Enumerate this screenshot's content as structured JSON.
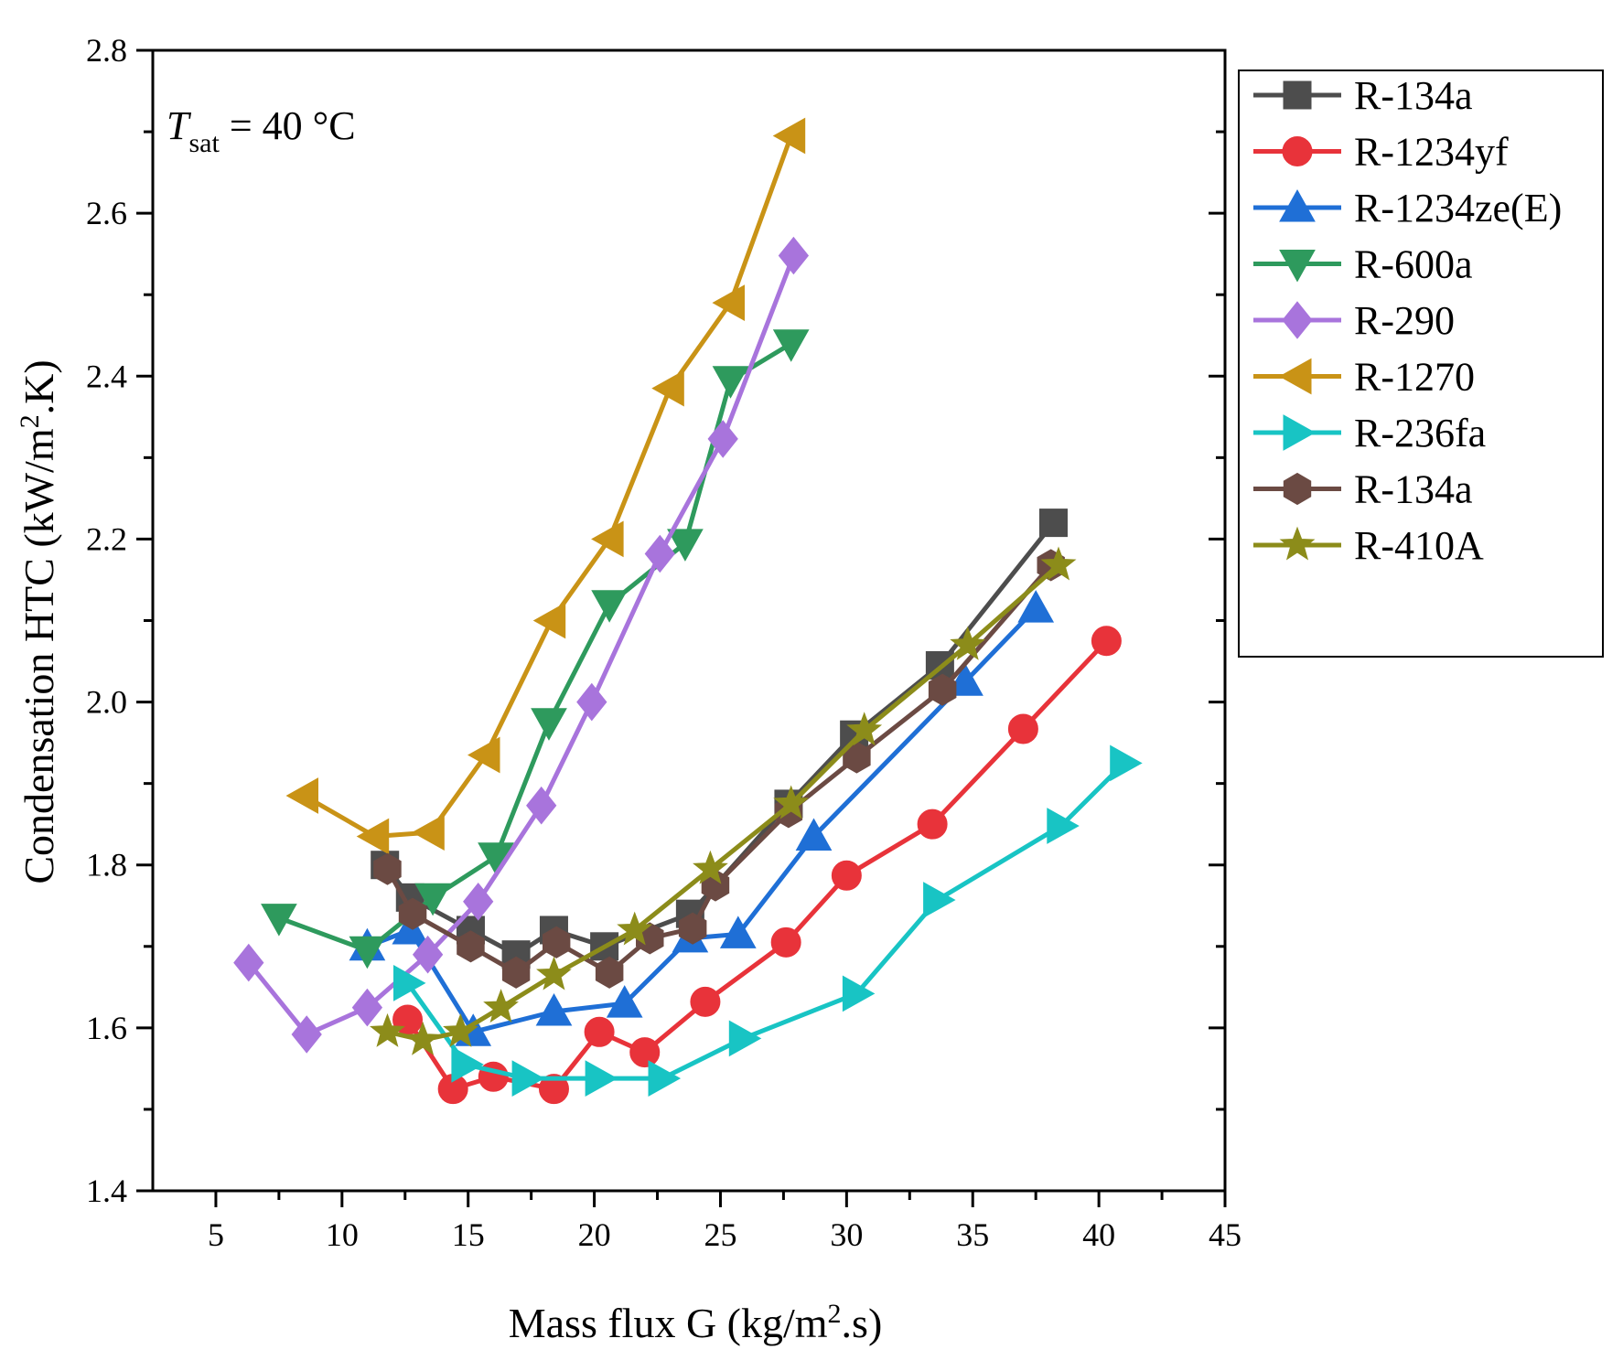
{
  "chart_data": {
    "type": "line",
    "title": "",
    "xlabel_prefix": "Mass flux G (kg/m",
    "xlabel_sup": "2",
    "xlabel_suffix": ".s)",
    "ylabel_prefix": "Condensation HTC (kW/m",
    "ylabel_sup": "2",
    "ylabel_suffix": ".K)",
    "xlim": [
      2.5,
      45
    ],
    "ylim": [
      1.4,
      2.8
    ],
    "xticks": [
      5,
      10,
      15,
      20,
      25,
      30,
      35,
      40,
      45
    ],
    "xtick_labels": [
      "5",
      "10",
      "15",
      "20",
      "25",
      "30",
      "35",
      "40",
      "45"
    ],
    "yticks": [
      1.4,
      1.6,
      1.8,
      2.0,
      2.2,
      2.4,
      2.6,
      2.8
    ],
    "ytick_labels": [
      "1.4",
      "1.6",
      "1.8",
      "2.0",
      "2.2",
      "2.4",
      "2.6",
      "2.8"
    ],
    "annotation": {
      "italic": "T",
      "sub": "sat",
      "rest": " = 40 °C"
    },
    "legend_position": "outside-right",
    "series": [
      {
        "name": "R-134a",
        "color": "#4d4d4d",
        "marker": "square",
        "x": [
          11.7,
          12.7,
          15.1,
          16.9,
          18.4,
          20.4,
          23.8,
          27.7,
          30.3,
          33.7,
          38.2
        ],
        "y": [
          1.8,
          1.76,
          1.72,
          1.69,
          1.72,
          1.7,
          1.74,
          1.875,
          1.96,
          2.045,
          2.22
        ]
      },
      {
        "name": "R-1234yf",
        "color": "#e8333a",
        "marker": "circle",
        "x": [
          12.6,
          14.4,
          16.0,
          18.4,
          20.2,
          22.0,
          24.4,
          27.6,
          30.0,
          33.4,
          37.0,
          40.3
        ],
        "y": [
          1.61,
          1.525,
          1.54,
          1.525,
          1.595,
          1.57,
          1.632,
          1.705,
          1.787,
          1.85,
          1.967,
          2.075
        ]
      },
      {
        "name": "R-1234ze(E)",
        "color": "#1f6fd6",
        "marker": "triangle-up",
        "x": [
          11.0,
          12.7,
          15.2,
          18.4,
          21.2,
          23.8,
          25.7,
          28.7,
          34.7,
          37.5
        ],
        "y": [
          1.7,
          1.72,
          1.595,
          1.62,
          1.63,
          1.71,
          1.715,
          1.835,
          2.025,
          2.115
        ]
      },
      {
        "name": "R-600a",
        "color": "#2e9a5d",
        "marker": "triangle-down",
        "x": [
          7.5,
          11.0,
          13.6,
          16.1,
          18.2,
          20.6,
          23.6,
          25.4,
          27.8
        ],
        "y": [
          1.735,
          1.695,
          1.76,
          1.81,
          1.975,
          2.12,
          2.195,
          2.395,
          2.44
        ]
      },
      {
        "name": "R-290",
        "color": "#a874dc",
        "marker": "diamond",
        "x": [
          6.3,
          8.6,
          11.0,
          13.4,
          15.4,
          17.9,
          19.9,
          22.6,
          25.1,
          27.9
        ],
        "y": [
          1.68,
          1.592,
          1.625,
          1.69,
          1.755,
          1.873,
          2.0,
          2.182,
          2.323,
          2.548
        ]
      },
      {
        "name": "R-1270",
        "color": "#c99316",
        "marker": "triangle-left",
        "x": [
          8.5,
          11.3,
          13.5,
          15.7,
          18.3,
          20.6,
          23.0,
          25.4,
          27.8
        ],
        "y": [
          1.885,
          1.835,
          1.84,
          1.935,
          2.1,
          2.2,
          2.385,
          2.49,
          2.695
        ]
      },
      {
        "name": "R-236fa",
        "color": "#18c4c4",
        "marker": "triangle-right",
        "x": [
          12.6,
          14.9,
          17.3,
          20.2,
          22.7,
          25.9,
          30.4,
          33.6,
          38.5,
          41.0
        ],
        "y": [
          1.655,
          1.555,
          1.538,
          1.538,
          1.538,
          1.587,
          1.642,
          1.757,
          1.848,
          1.925
        ]
      },
      {
        "name": "R-134a",
        "color": "#6b4a43",
        "marker": "hexagon",
        "x": [
          11.8,
          12.8,
          15.1,
          16.9,
          18.5,
          20.6,
          22.2,
          23.9,
          24.8,
          27.7,
          30.4,
          33.8,
          38.1
        ],
        "y": [
          1.795,
          1.74,
          1.7,
          1.668,
          1.705,
          1.668,
          1.71,
          1.722,
          1.775,
          1.865,
          1.932,
          2.015,
          2.168
        ]
      },
      {
        "name": "R-410A",
        "color": "#8c8c1a",
        "marker": "star",
        "x": [
          11.8,
          13.2,
          14.7,
          16.3,
          18.4,
          21.6,
          24.6,
          27.8,
          30.7,
          34.8,
          38.4
        ],
        "y": [
          1.595,
          1.585,
          1.595,
          1.625,
          1.665,
          1.72,
          1.795,
          1.875,
          1.965,
          2.07,
          2.168
        ]
      }
    ]
  }
}
